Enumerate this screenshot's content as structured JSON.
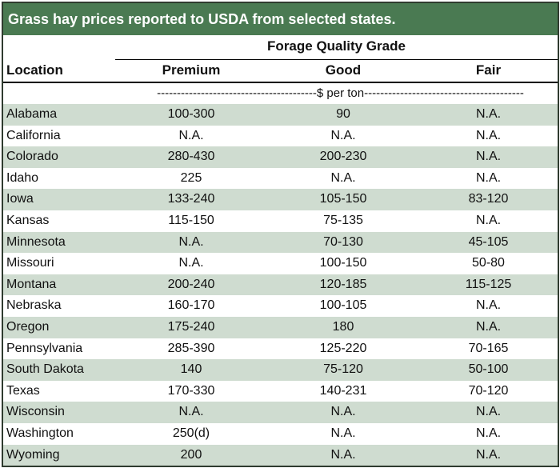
{
  "title": "Grass hay prices reported to USDA from selected states.",
  "header": {
    "group_label": "Forage Quality Grade",
    "location_label": "Location",
    "premium_label": "Premium",
    "good_label": "Good",
    "fair_label": "Fair"
  },
  "unit_label": "----------------------------------------$ per ton----------------------------------------",
  "rows": [
    {
      "location": "Alabama",
      "premium": "100-300",
      "good": "90",
      "fair": "N.A."
    },
    {
      "location": "California",
      "premium": "N.A.",
      "good": "N.A.",
      "fair": "N.A."
    },
    {
      "location": "Colorado",
      "premium": "280-430",
      "good": "200-230",
      "fair": "N.A."
    },
    {
      "location": "Idaho",
      "premium": "225",
      "good": "N.A.",
      "fair": "N.A."
    },
    {
      "location": "Iowa",
      "premium": "133-240",
      "good": "105-150",
      "fair": "83-120"
    },
    {
      "location": "Kansas",
      "premium": "115-150",
      "good": "75-135",
      "fair": "N.A."
    },
    {
      "location": "Minnesota",
      "premium": "N.A.",
      "good": "70-130",
      "fair": "45-105"
    },
    {
      "location": "Missouri",
      "premium": "N.A.",
      "good": "100-150",
      "fair": "50-80"
    },
    {
      "location": "Montana",
      "premium": "200-240",
      "good": "120-185",
      "fair": "115-125"
    },
    {
      "location": "Nebraska",
      "premium": "160-170",
      "good": "100-105",
      "fair": "N.A."
    },
    {
      "location": "Oregon",
      "premium": "175-240",
      "good": "180",
      "fair": "N.A."
    },
    {
      "location": "Pennsylvania",
      "premium": "285-390",
      "good": "125-220",
      "fair": "70-165"
    },
    {
      "location": "South Dakota",
      "premium": "140",
      "good": "75-120",
      "fair": "50-100"
    },
    {
      "location": "Texas",
      "premium": "170-330",
      "good": "140-231",
      "fair": "70-120"
    },
    {
      "location": "Wisconsin",
      "premium": "N.A.",
      "good": "N.A.",
      "fair": "N.A."
    },
    {
      "location": "Washington",
      "premium": "250(d)",
      "good": "N.A.",
      "fair": "N.A."
    },
    {
      "location": "Wyoming",
      "premium": "200",
      "good": "N.A.",
      "fair": "N.A."
    }
  ]
}
